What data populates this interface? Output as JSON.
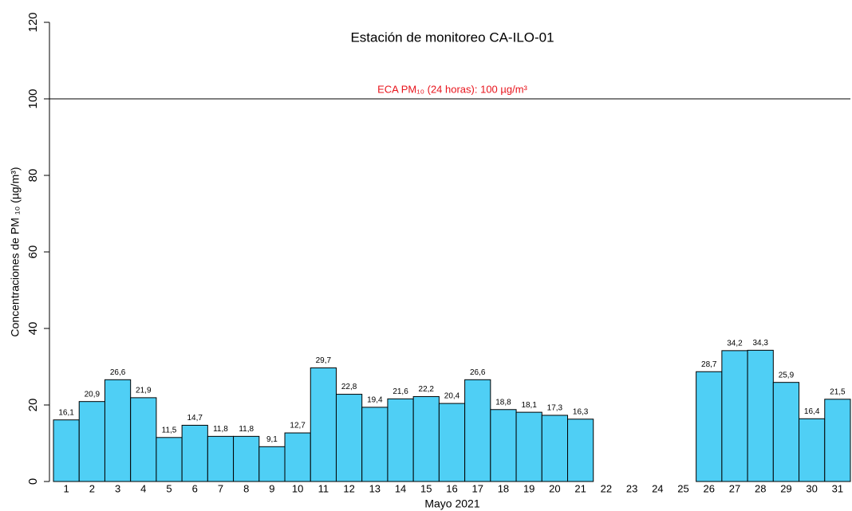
{
  "chart_data": {
    "type": "bar",
    "title": "Estación de monitoreo  CA-ILO-01",
    "xlabel": "Mayo 2021",
    "ylabel": "Concentraciones de PM ₁₀ (µg/m³)",
    "categories": [
      "1",
      "2",
      "3",
      "4",
      "5",
      "6",
      "7",
      "8",
      "9",
      "10",
      "11",
      "12",
      "13",
      "14",
      "15",
      "16",
      "17",
      "18",
      "19",
      "20",
      "21",
      "22",
      "23",
      "24",
      "25",
      "26",
      "27",
      "28",
      "29",
      "30",
      "31"
    ],
    "values": [
      16.1,
      20.9,
      26.6,
      21.9,
      11.5,
      14.7,
      11.8,
      11.8,
      9.1,
      12.7,
      29.7,
      22.8,
      19.4,
      21.6,
      22.2,
      20.4,
      26.6,
      18.8,
      18.1,
      17.3,
      16.3,
      null,
      null,
      null,
      null,
      28.7,
      34.2,
      34.3,
      25.9,
      16.4,
      21.5
    ],
    "value_labels": [
      "16,1",
      "20,9",
      "26,6",
      "21,9",
      "11,5",
      "14,7",
      "11,8",
      "11,8",
      "9,1",
      "12,7",
      "29,7",
      "22,8",
      "19,4",
      "21,6",
      "22,2",
      "20,4",
      "26,6",
      "18,8",
      "18,1",
      "17,3",
      "16,3",
      null,
      null,
      null,
      null,
      "28,7",
      "34,2",
      "34,3",
      "25,9",
      "16,4",
      "21,5"
    ],
    "color": "#4fcff5",
    "ylim": [
      0,
      120
    ],
    "yticks": [
      0,
      20,
      40,
      60,
      80,
      100,
      120
    ],
    "reference_line": {
      "value": 100,
      "label": "ECA PM₁₀ (24 horas): 100 µg/m³",
      "color": "#e8141c"
    }
  }
}
